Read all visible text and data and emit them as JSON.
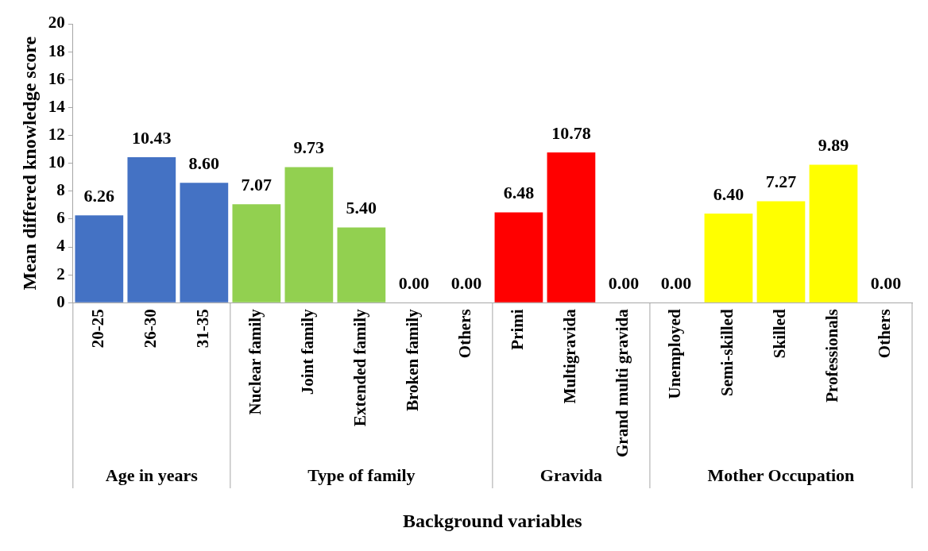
{
  "chart_data": {
    "type": "bar",
    "xlabel": "Background variables",
    "ylabel": "Mean differed knowledge score",
    "categories": [
      "20-25",
      "26-30",
      "31-35",
      "Nuclear family",
      "Joint family",
      "Extended family",
      "Broken family",
      "Others",
      "Primi",
      "Multigravida",
      "Grand multi gravida",
      "Unemployed",
      "Semi-skilled",
      "Skilled",
      "Professionals",
      "Others"
    ],
    "values": [
      6.26,
      10.43,
      8.6,
      7.07,
      9.73,
      5.4,
      0,
      0,
      6.48,
      10.78,
      0,
      0,
      6.4,
      7.27,
      9.89,
      0
    ],
    "value_labels": [
      "6.26",
      "10.43",
      "8.60",
      "7.07",
      "9.73",
      "5.40",
      "0.00",
      "0.00",
      "6.48",
      "10.78",
      "0.00",
      "0.00",
      "6.40",
      "7.27",
      "9.89",
      "0.00"
    ],
    "colors": [
      "#4472c4",
      "#4472c4",
      "#4472c4",
      "#92d050",
      "#92d050",
      "#92d050",
      "#92d050",
      "#92d050",
      "#ff0000",
      "#ff0000",
      "#ff0000",
      "#ffff00",
      "#ffff00",
      "#ffff00",
      "#ffff00",
      "#ffff00"
    ],
    "annotations": [
      "Age in years",
      "Type of family",
      "Gravida",
      "Mother Occupation"
    ],
    "ylim": [
      0,
      20
    ],
    "yticks": [
      0,
      2,
      4,
      6,
      8,
      10,
      12,
      14,
      16,
      18,
      20
    ],
    "grid": false,
    "legend": false
  }
}
